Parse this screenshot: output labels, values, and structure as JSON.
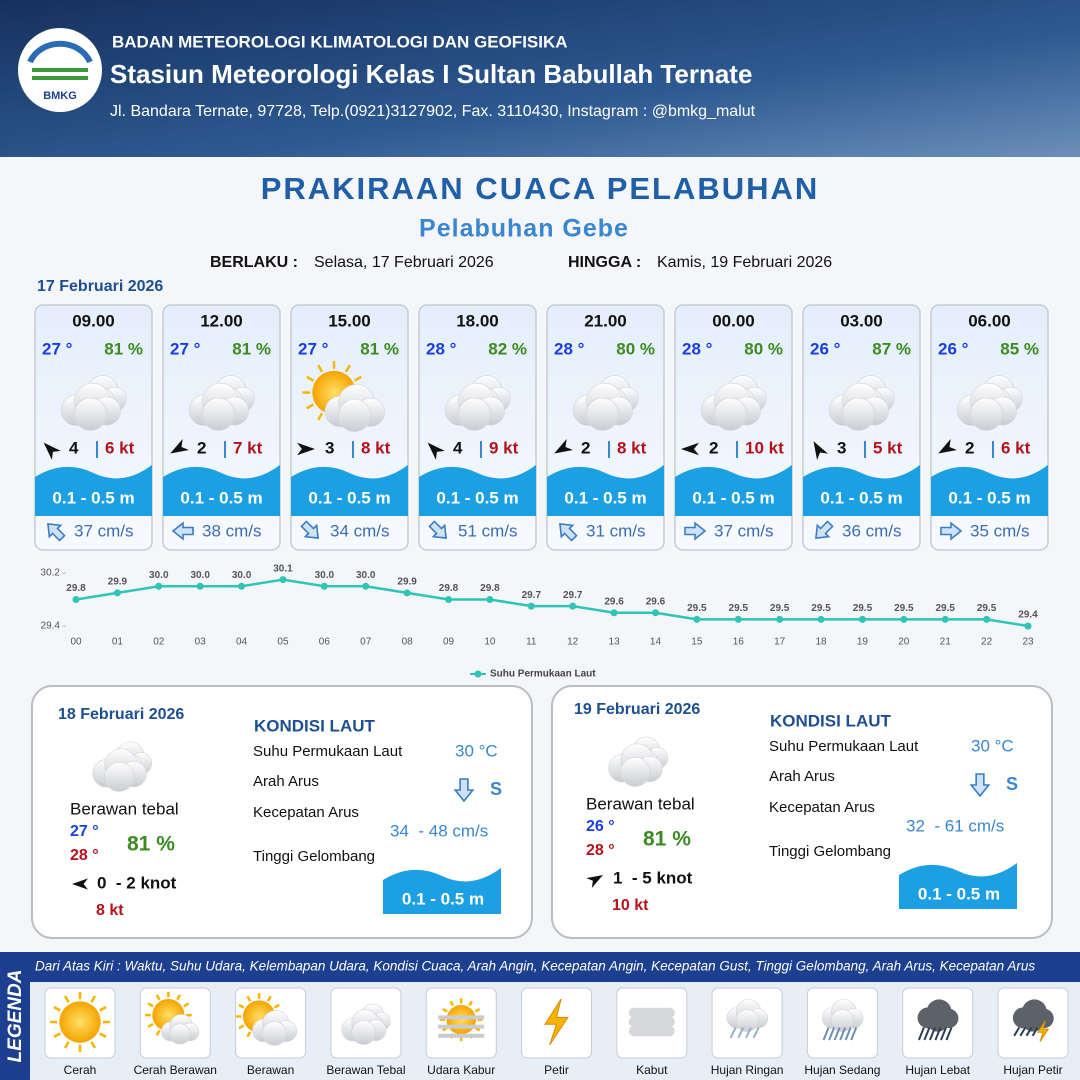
{
  "header": {
    "logo_text": "BMKG",
    "agency": "BADAN METEOROLOGI KLIMATOLOGI DAN GEOFISIKA",
    "station": "Stasiun Meteorologi Kelas I Sultan Babullah Ternate",
    "address": "Jl. Bandara Ternate, 97728, Telp.(0921)3127902, Fax. 3110430, Instagram : @bmkg_malut"
  },
  "title": "PRAKIRAAN CUACA PELABUHAN",
  "subtitle": "Pelabuhan Gebe",
  "validity": {
    "from_label": "BERLAKU :",
    "from": "Selasa, 17 Februari 2026",
    "until_label": "HINGGA :",
    "until": "Kamis, 19 Februari 2026"
  },
  "day1": {
    "date": "17 Februari 2026",
    "forecasts": [
      {
        "time": "09.00",
        "temperature": "27 °",
        "humidity": "81 %",
        "icon": "berawan-tebal",
        "wind_dir_deg": 315,
        "wind_speed": "4",
        "gust": "6 kt",
        "wave": "0.1 - 0.5 m",
        "current_dir_deg": 315,
        "current_speed": "37 cm/s"
      },
      {
        "time": "12.00",
        "temperature": "27 °",
        "humidity": "81 %",
        "icon": "berawan-tebal",
        "wind_dir_deg": 240,
        "wind_speed": "2",
        "gust": "7 kt",
        "wave": "0.1 - 0.5 m",
        "current_dir_deg": 270,
        "current_speed": "38 cm/s"
      },
      {
        "time": "15.00",
        "temperature": "27 °",
        "humidity": "81 %",
        "icon": "berawan",
        "wind_dir_deg": 90,
        "wind_speed": "3",
        "gust": "8 kt",
        "wave": "0.1 - 0.5 m",
        "current_dir_deg": 135,
        "current_speed": "34 cm/s"
      },
      {
        "time": "18.00",
        "temperature": "28 °",
        "humidity": "82 %",
        "icon": "berawan-tebal",
        "wind_dir_deg": 315,
        "wind_speed": "4",
        "gust": "9 kt",
        "wave": "0.1 - 0.5 m",
        "current_dir_deg": 135,
        "current_speed": "51 cm/s"
      },
      {
        "time": "21.00",
        "temperature": "28 °",
        "humidity": "80 %",
        "icon": "berawan-tebal",
        "wind_dir_deg": 240,
        "wind_speed": "2",
        "gust": "8 kt",
        "wave": "0.1 - 0.5 m",
        "current_dir_deg": 315,
        "current_speed": "31 cm/s"
      },
      {
        "time": "00.00",
        "temperature": "28 °",
        "humidity": "80 %",
        "icon": "berawan-tebal",
        "wind_dir_deg": 270,
        "wind_speed": "2",
        "gust": "10 kt",
        "wave": "0.1 - 0.5 m",
        "current_dir_deg": 90,
        "current_speed": "37 cm/s"
      },
      {
        "time": "03.00",
        "temperature": "26 °",
        "humidity": "87 %",
        "icon": "berawan-tebal",
        "wind_dir_deg": 330,
        "wind_speed": "3",
        "gust": "5 kt",
        "wave": "0.1 - 0.5 m",
        "current_dir_deg": 225,
        "current_speed": "36 cm/s"
      },
      {
        "time": "06.00",
        "temperature": "26 °",
        "humidity": "85 %",
        "icon": "berawan-tebal",
        "wind_dir_deg": 240,
        "wind_speed": "2",
        "gust": "6 kt",
        "wave": "0.1 - 0.5 m",
        "current_dir_deg": 90,
        "current_speed": "35 cm/s"
      }
    ]
  },
  "chart_data": {
    "type": "line",
    "categories": [
      "00",
      "01",
      "02",
      "03",
      "04",
      "05",
      "06",
      "07",
      "08",
      "09",
      "10",
      "11",
      "12",
      "13",
      "14",
      "15",
      "16",
      "17",
      "18",
      "19",
      "20",
      "21",
      "22",
      "23"
    ],
    "series": [
      {
        "name": "Suhu Permukaan Laut",
        "color": "#2ec4b6",
        "values": [
          29.8,
          29.9,
          30.0,
          30.0,
          30.0,
          30.1,
          30.0,
          30.0,
          29.9,
          29.8,
          29.8,
          29.7,
          29.7,
          29.6,
          29.6,
          29.5,
          29.5,
          29.5,
          29.5,
          29.5,
          29.5,
          29.5,
          29.5,
          29.4
        ],
        "value_labels": [
          "29.8",
          "29.9",
          "30.0",
          "30.0",
          "30.0",
          "30.1",
          "30.0",
          "30.0",
          "29.9",
          "29.8",
          "29.8",
          "29.7",
          "29.7",
          "29.6",
          "29.6",
          "29.5",
          "29.5",
          "29.5",
          "29.5",
          "29.5",
          "29.5",
          "29.5",
          "29.5",
          "29.4"
        ]
      }
    ],
    "ylim": [
      29.4,
      30.2
    ],
    "yticks": [
      29.4,
      30.2
    ],
    "legend": "bottom"
  },
  "days": [
    {
      "date": "18 Februari 2026",
      "icon": "berawan-tebal",
      "condition": "Berawan tebal",
      "temp_min": "27 °",
      "temp_max": "28 °",
      "humidity": "81 %",
      "wind_dir_deg": 270,
      "wind": "0  - 2 knot",
      "gust": "8 kt",
      "sea_heading": "KONDISI LAUT",
      "sea_labels": [
        "Suhu Permukaan Laut",
        "Arah Arus",
        "Kecepatan Arus",
        "Tinggi Gelombang"
      ],
      "sst": "30 °C",
      "current_dir_deg": 180,
      "current_dir": "S",
      "current_speed": "34  - 48 cm/s",
      "wave": "0.1 - 0.5 m"
    },
    {
      "date": "19 Februari 2026",
      "icon": "berawan-tebal",
      "condition": "Berawan tebal",
      "temp_min": "26 °",
      "temp_max": "28 °",
      "humidity": "81 %",
      "wind_dir_deg": 60,
      "wind": "1  - 5 knot",
      "gust": "10 kt",
      "sea_heading": "KONDISI LAUT",
      "sea_labels": [
        "Suhu Permukaan Laut",
        "Arah Arus",
        "Kecepatan Arus",
        "Tinggi Gelombang"
      ],
      "sst": "30 °C",
      "current_dir_deg": 180,
      "current_dir": "S",
      "current_speed": "32  - 61 cm/s",
      "wave": "0.1 - 0.5 m"
    }
  ],
  "legend": {
    "heading": "LEGENDA",
    "description": "Dari Atas Kiri : Waktu, Suhu Udara, Kelembapan Udara, Kondisi Cuaca, Arah Angin, Kecepatan Angin, Kecepatan Gust, Tinggi Gelombang, Arah Arus, Kecepatan Arus",
    "items": [
      {
        "name": "Cerah",
        "icon": "cerah"
      },
      {
        "name": "Cerah Berawan",
        "icon": "cerah-berawan"
      },
      {
        "name": "Berawan",
        "icon": "berawan"
      },
      {
        "name": "Berawan Tebal",
        "icon": "berawan-tebal"
      },
      {
        "name": "Udara Kabur",
        "icon": "udara-kabur"
      },
      {
        "name": "Petir",
        "icon": "petir"
      },
      {
        "name": "Kabut",
        "icon": "kabut"
      },
      {
        "name": "Hujan Ringan",
        "icon": "hujan-ringan"
      },
      {
        "name": "Hujan Sedang",
        "icon": "hujan-sedang"
      },
      {
        "name": "Hujan Lebat",
        "icon": "hujan-lebat"
      },
      {
        "name": "Hujan Petir",
        "icon": "hujan-petir"
      }
    ]
  }
}
